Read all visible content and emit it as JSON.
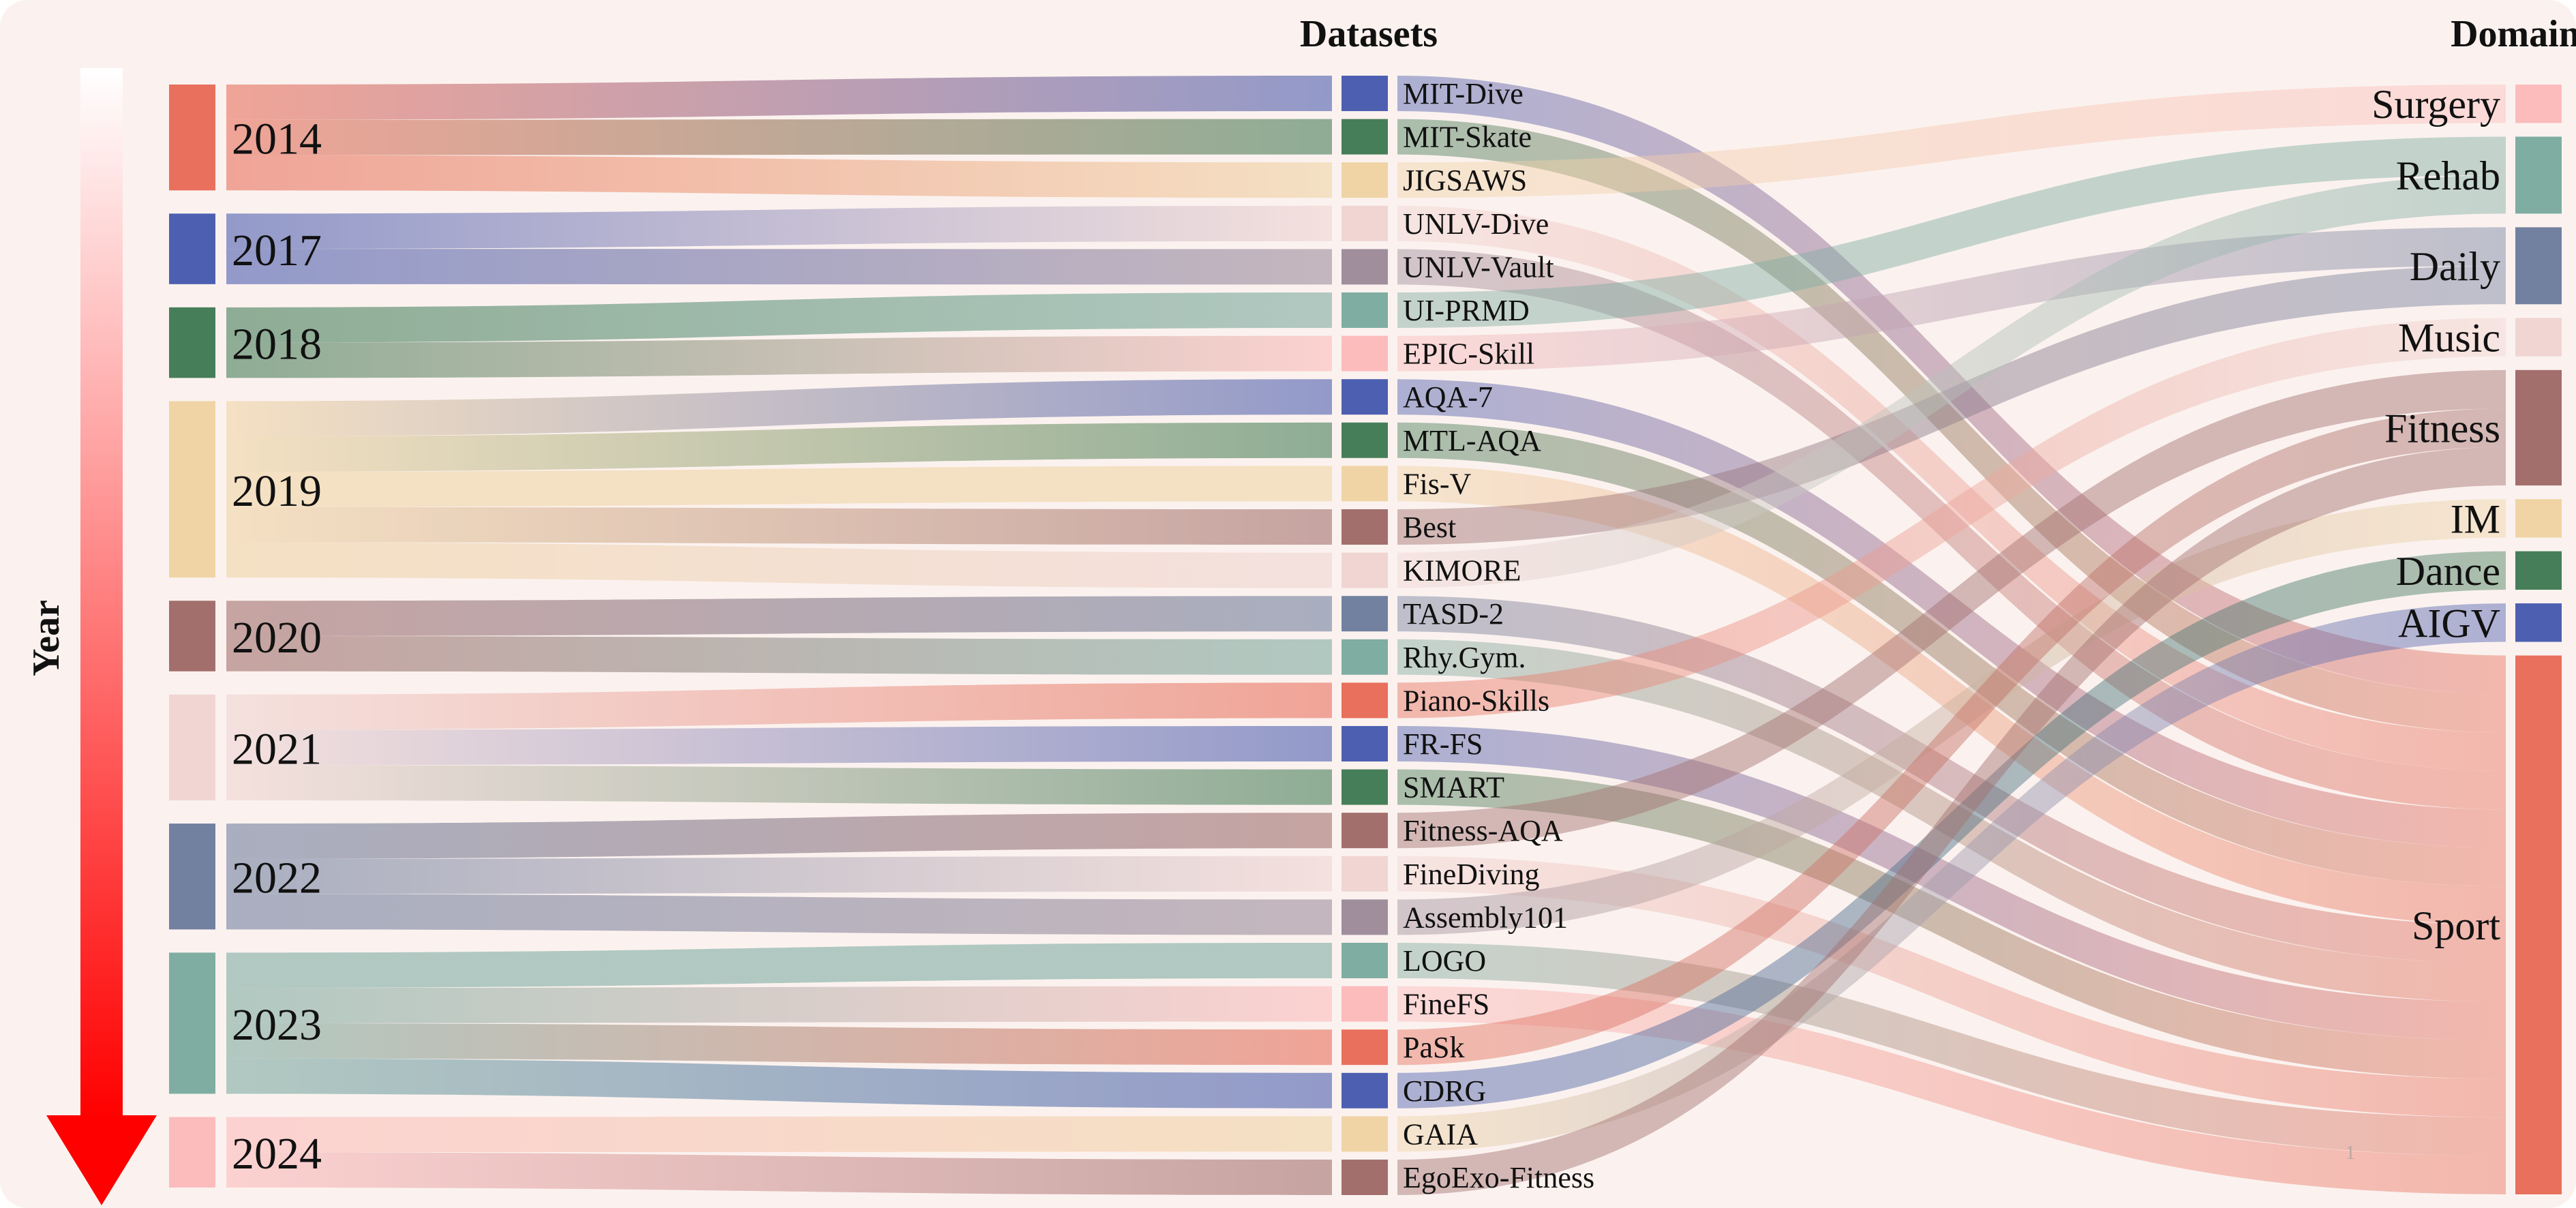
{
  "headers": {
    "datasets": "Datasets",
    "domain": "Domain",
    "year": "Year"
  },
  "footnote": "1",
  "colors": {
    "red": "#e8705c",
    "blue": "#4d5fb0",
    "green": "#467e59",
    "beige": "#f0d4a5",
    "lightpink": "#f0d5d2",
    "mauve": "#a08e9d",
    "teal": "#7fada2",
    "pink": "#fcbcbc",
    "brown": "#a26f6d",
    "slate": "#7281a0",
    "background": "#fbf2ef",
    "arrow_top": "#ffffff",
    "arrow_bottom": "#ff0000"
  },
  "chart_data": {
    "type": "sankey",
    "title": "",
    "columns": [
      "Year",
      "Datasets",
      "Domain"
    ],
    "years": [
      {
        "name": "2014",
        "color": "red"
      },
      {
        "name": "2017",
        "color": "blue"
      },
      {
        "name": "2018",
        "color": "green"
      },
      {
        "name": "2019",
        "color": "beige"
      },
      {
        "name": "2020",
        "color": "brown"
      },
      {
        "name": "2021",
        "color": "lightpink"
      },
      {
        "name": "2022",
        "color": "slate"
      },
      {
        "name": "2023",
        "color": "teal"
      },
      {
        "name": "2024",
        "color": "pink"
      }
    ],
    "domains": [
      {
        "name": "Surgery",
        "color": "pink"
      },
      {
        "name": "Rehab",
        "color": "teal"
      },
      {
        "name": "Daily",
        "color": "slate"
      },
      {
        "name": "Music",
        "color": "lightpink"
      },
      {
        "name": "Fitness",
        "color": "brown"
      },
      {
        "name": "IM",
        "color": "beige"
      },
      {
        "name": "Dance",
        "color": "green"
      },
      {
        "name": "AIGV",
        "color": "blue"
      },
      {
        "name": "Sport",
        "color": "red"
      }
    ],
    "datasets": [
      {
        "name": "MIT-Dive",
        "year": "2014",
        "domain": "Sport",
        "color": "blue"
      },
      {
        "name": "MIT-Skate",
        "year": "2014",
        "domain": "Sport",
        "color": "green"
      },
      {
        "name": "JIGSAWS",
        "year": "2014",
        "domain": "Surgery",
        "color": "beige"
      },
      {
        "name": "UNLV-Dive",
        "year": "2017",
        "domain": "Sport",
        "color": "lightpink"
      },
      {
        "name": "UNLV-Vault",
        "year": "2017",
        "domain": "Sport",
        "color": "mauve"
      },
      {
        "name": "UI-PRMD",
        "year": "2018",
        "domain": "Rehab",
        "color": "teal"
      },
      {
        "name": "EPIC-Skill",
        "year": "2018",
        "domain": "Daily",
        "color": "pink"
      },
      {
        "name": "AQA-7",
        "year": "2019",
        "domain": "Sport",
        "color": "blue"
      },
      {
        "name": "MTL-AQA",
        "year": "2019",
        "domain": "Sport",
        "color": "green"
      },
      {
        "name": "Fis-V",
        "year": "2019",
        "domain": "Sport",
        "color": "beige"
      },
      {
        "name": "Best",
        "year": "2019",
        "domain": "Daily",
        "color": "brown"
      },
      {
        "name": "KIMORE",
        "year": "2019",
        "domain": "Rehab",
        "color": "lightpink"
      },
      {
        "name": "TASD-2",
        "year": "2020",
        "domain": "Sport",
        "color": "slate"
      },
      {
        "name": "Rhy.Gym.",
        "year": "2020",
        "domain": "Sport",
        "color": "teal"
      },
      {
        "name": "Piano-Skills",
        "year": "2021",
        "domain": "Music",
        "color": "red"
      },
      {
        "name": "FR-FS",
        "year": "2021",
        "domain": "Sport",
        "color": "blue"
      },
      {
        "name": "SMART",
        "year": "2021",
        "domain": "Sport",
        "color": "green"
      },
      {
        "name": "Fitness-AQA",
        "year": "2022",
        "domain": "Fitness",
        "color": "brown"
      },
      {
        "name": "FineDiving",
        "year": "2022",
        "domain": "Sport",
        "color": "lightpink"
      },
      {
        "name": "Assembly101",
        "year": "2022",
        "domain": "IM",
        "color": "mauve"
      },
      {
        "name": "LOGO",
        "year": "2023",
        "domain": "Sport",
        "color": "teal"
      },
      {
        "name": "FineFS",
        "year": "2023",
        "domain": "Sport",
        "color": "pink"
      },
      {
        "name": "PaSk",
        "year": "2023",
        "domain": "Fitness",
        "color": "red"
      },
      {
        "name": "CDRG",
        "year": "2023",
        "domain": "Dance",
        "color": "blue"
      },
      {
        "name": "GAIA",
        "year": "2024",
        "domain": "AIGV",
        "color": "beige"
      },
      {
        "name": "EgoExo-Fitness",
        "year": "2024",
        "domain": "Fitness",
        "color": "brown"
      }
    ]
  }
}
